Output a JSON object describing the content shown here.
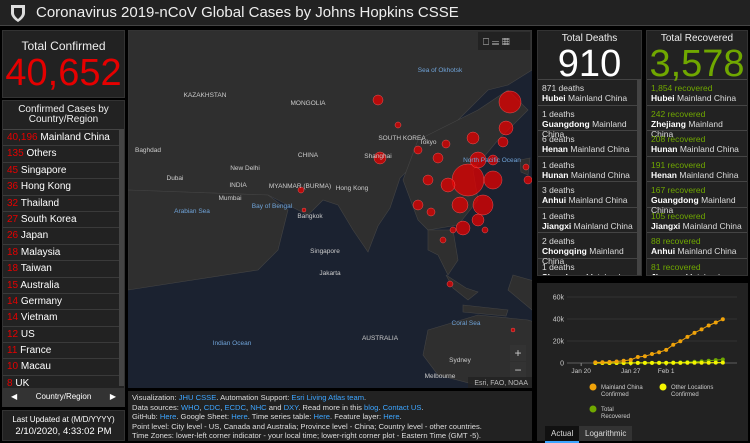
{
  "header": {
    "title": "Coronavirus 2019-nCoV Global Cases by Johns Hopkins CSSE"
  },
  "confirmed": {
    "label": "Total Confirmed",
    "value": "40,652"
  },
  "country_list": {
    "title": "Confirmed Cases by Country/Region",
    "tab": "Country/Region",
    "rows": [
      [
        "40,196",
        "Mainland China"
      ],
      [
        "135",
        "Others"
      ],
      [
        "45",
        "Singapore"
      ],
      [
        "36",
        "Hong Kong"
      ],
      [
        "32",
        "Thailand"
      ],
      [
        "27",
        "South Korea"
      ],
      [
        "26",
        "Japan"
      ],
      [
        "18",
        "Malaysia"
      ],
      [
        "18",
        "Taiwan"
      ],
      [
        "15",
        "Australia"
      ],
      [
        "14",
        "Germany"
      ],
      [
        "14",
        "Vietnam"
      ],
      [
        "12",
        "US"
      ],
      [
        "11",
        "France"
      ],
      [
        "10",
        "Macau"
      ],
      [
        "8",
        "UK"
      ]
    ]
  },
  "updated": {
    "label": "Last Updated at (M/D/YYYY)",
    "value": "2/10/2020, 4:33:02 PM"
  },
  "deaths": {
    "label": "Total Deaths",
    "value": "910",
    "items": [
      [
        "871 deaths",
        "Hubei",
        "Mainland China"
      ],
      [
        "1 deaths",
        "Guangdong",
        "Mainland China"
      ],
      [
        "6 deaths",
        "Henan",
        "Mainland China"
      ],
      [
        "1 deaths",
        "Hunan",
        "Mainland China"
      ],
      [
        "3 deaths",
        "Anhui",
        "Mainland China"
      ],
      [
        "1 deaths",
        "Jiangxi",
        "Mainland China"
      ],
      [
        "2 deaths",
        "Chongqing",
        "Mainland China"
      ],
      [
        "1 deaths",
        "Shandong",
        "Mainland China"
      ]
    ]
  },
  "recovered": {
    "label": "Total Recovered",
    "value": "3,578",
    "items": [
      [
        "1,854 recovered",
        "Hubei",
        "Mainland China"
      ],
      [
        "242 recovered",
        "Zhejiang",
        "Mainland China"
      ],
      [
        "208 recovered",
        "Hunan",
        "Mainland China"
      ],
      [
        "191 recovered",
        "Henan",
        "Mainland China"
      ],
      [
        "167 recovered",
        "Guangdong",
        "Mainland China"
      ],
      [
        "105 recovered",
        "Jiangxi",
        "Mainland China"
      ],
      [
        "88 recovered",
        "Anhui",
        "Mainland China"
      ],
      [
        "81 recovered",
        "Jiangsu",
        "Mainland China"
      ]
    ]
  },
  "map": {
    "attribution": "Esri, FAO, NOAA",
    "labels": [
      [
        "KAZAKHSTAN",
        205,
        97
      ],
      [
        "MONGOLIA",
        308,
        105
      ],
      [
        "CHINA",
        308,
        157
      ],
      [
        "INDIA",
        238,
        187
      ],
      [
        "Baghdad",
        148,
        152
      ],
      [
        "Dubai",
        175,
        180
      ],
      [
        "New Delhi",
        245,
        170
      ],
      [
        "Mumbai",
        230,
        200
      ],
      [
        "MYANMAR (BURMA)",
        300,
        188
      ],
      [
        "Bangkok",
        310,
        218
      ],
      [
        "Singapore",
        325,
        253
      ],
      [
        "Jakarta",
        330,
        275
      ],
      [
        "Shanghai",
        378,
        158
      ],
      [
        "Tokyo",
        428,
        144
      ],
      [
        "SOUTH KOREA",
        402,
        140
      ],
      [
        "Hong Kong",
        352,
        190
      ],
      [
        "Arabian Sea",
        192,
        213
      ],
      [
        "Bay of Bengal",
        272,
        208
      ],
      [
        "Sea of Okhotsk",
        440,
        72
      ],
      [
        "North Pacific Ocean",
        492,
        162
      ],
      [
        "Indian Ocean",
        232,
        345
      ],
      [
        "AUSTRALIA",
        380,
        340
      ],
      [
        "Coral Sea",
        466,
        325
      ],
      [
        "Sydney",
        460,
        362
      ],
      [
        "Melbourne",
        440,
        378
      ]
    ]
  },
  "chart": {
    "type": "line",
    "x": [
      "Jan 22",
      "Jan 23",
      "Jan 24",
      "Jan 25",
      "Jan 26",
      "Jan 27",
      "Jan 28",
      "Jan 29",
      "Jan 30",
      "Jan 31",
      "Feb 1",
      "Feb 2",
      "Feb 3",
      "Feb 4",
      "Feb 5",
      "Feb 6",
      "Feb 7",
      "Feb 8",
      "Feb 9"
    ],
    "xlim": [
      "Jan 18",
      "Feb 11"
    ],
    "xticks": [
      "Jan 20",
      "Jan 27",
      "Feb 1"
    ],
    "ylim": [
      0,
      60000
    ],
    "yticks": [
      0,
      {
        "value": 20000,
        "label": "20k"
      },
      {
        "value": 40000,
        "label": "40k"
      },
      {
        "value": 60000,
        "label": "60k"
      }
    ],
    "series": [
      {
        "name": "Mainland China Confirmed",
        "color": "#f0a30a",
        "values": [
          548,
          643,
          920,
          1406,
          2075,
          2877,
          5509,
          6087,
          8141,
          9802,
          11891,
          16630,
          19716,
          23707,
          27440,
          30587,
          34110,
          36814,
          39829
        ]
      },
      {
        "name": "Other Locations Confirmed",
        "color": "#f5f500",
        "values": [
          7,
          11,
          21,
          28,
          43,
          50,
          70,
          87,
          105,
          124,
          131,
          152,
          152,
          178,
          193,
          218,
          281,
          299,
          316
        ]
      },
      {
        "name": "Total Recovered",
        "color": "#70a800",
        "values": [
          28,
          30,
          36,
          39,
          49,
          58,
          101,
          120,
          135,
          214,
          275,
          463,
          614,
          843,
          1115,
          1477,
          1999,
          2596,
          3219
        ]
      }
    ],
    "tabs": [
      "Actual",
      "Logarithmic"
    ]
  },
  "footer": {
    "lines": [
      [
        {
          "text": "Visualization: "
        },
        {
          "text": "JHU CSSE",
          "link": true
        },
        {
          "text": ". Automation Support: "
        },
        {
          "text": "Esri Living Atlas team",
          "link": true
        },
        {
          "text": "."
        }
      ],
      [
        {
          "text": "Data sources: "
        },
        {
          "text": "WHO",
          "link": true
        },
        {
          "text": ", "
        },
        {
          "text": "CDC",
          "link": true
        },
        {
          "text": ", "
        },
        {
          "text": "ECDC",
          "link": true
        },
        {
          "text": ", "
        },
        {
          "text": "NHC",
          "link": true
        },
        {
          "text": " and "
        },
        {
          "text": "DXY",
          "link": true
        },
        {
          "text": ". Read more in this "
        },
        {
          "text": "blog",
          "link": true
        },
        {
          "text": ". "
        },
        {
          "text": "Contact US",
          "link": true
        },
        {
          "text": "."
        }
      ],
      [
        {
          "text": "GitHub: "
        },
        {
          "text": "Here",
          "link": true
        },
        {
          "text": ". Google Sheet: "
        },
        {
          "text": "Here",
          "link": true
        },
        {
          "text": ". Time series table: "
        },
        {
          "text": "Here",
          "link": true
        },
        {
          "text": ". Feature layer: "
        },
        {
          "text": "Here",
          "link": true
        },
        {
          "text": "."
        }
      ],
      [
        {
          "text": "Point level: City level - US, Canada and Australia; Province level - China; Country level - other countries."
        }
      ],
      [
        {
          "text": "Time Zones: lower-left corner indicator - your local time; lower-right corner plot - Eastern Time (GMT -5)."
        }
      ]
    ]
  }
}
